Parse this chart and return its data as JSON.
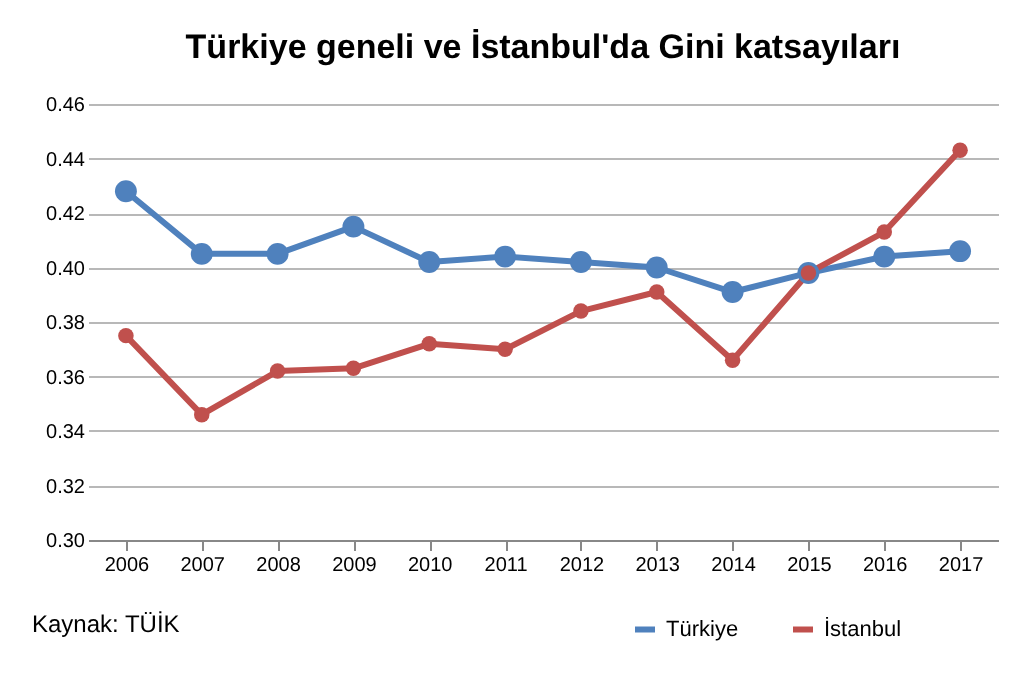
{
  "chart_data": {
    "type": "line",
    "title": "Türkiye geneli ve İstanbul'da Gini katsayıları",
    "categories": [
      "2006",
      "2007",
      "2008",
      "2009",
      "2010",
      "2011",
      "2012",
      "2013",
      "2014",
      "2015",
      "2016",
      "2017"
    ],
    "series": [
      {
        "name": "Türkiye",
        "color": "#4f81bd",
        "values": [
          0.428,
          0.405,
          0.405,
          0.415,
          0.402,
          0.404,
          0.402,
          0.4,
          0.391,
          0.398,
          0.404,
          0.406
        ]
      },
      {
        "name": "İstanbul",
        "color": "#c0504d",
        "values": [
          0.375,
          0.346,
          0.362,
          0.363,
          0.372,
          0.37,
          0.384,
          0.391,
          0.366,
          0.398,
          0.413,
          0.443
        ]
      }
    ],
    "ylim": [
      0.3,
      0.46
    ],
    "yticks": [
      {
        "value": 0.3,
        "label": "0.30"
      },
      {
        "value": 0.32,
        "label": "0.32"
      },
      {
        "value": 0.34,
        "label": "0.34"
      },
      {
        "value": 0.36,
        "label": "0.36"
      },
      {
        "value": 0.38,
        "label": "0.38"
      },
      {
        "value": 0.4,
        "label": "0.40"
      },
      {
        "value": 0.42,
        "label": "0.42"
      },
      {
        "value": 0.44,
        "label": "0.44"
      },
      {
        "value": 0.46,
        "label": "0.46"
      }
    ],
    "grid": "y",
    "marker": "circle",
    "line_style": "solid",
    "legend": "bottom right",
    "annotations": [
      "Kaynak: TÜİK"
    ]
  }
}
